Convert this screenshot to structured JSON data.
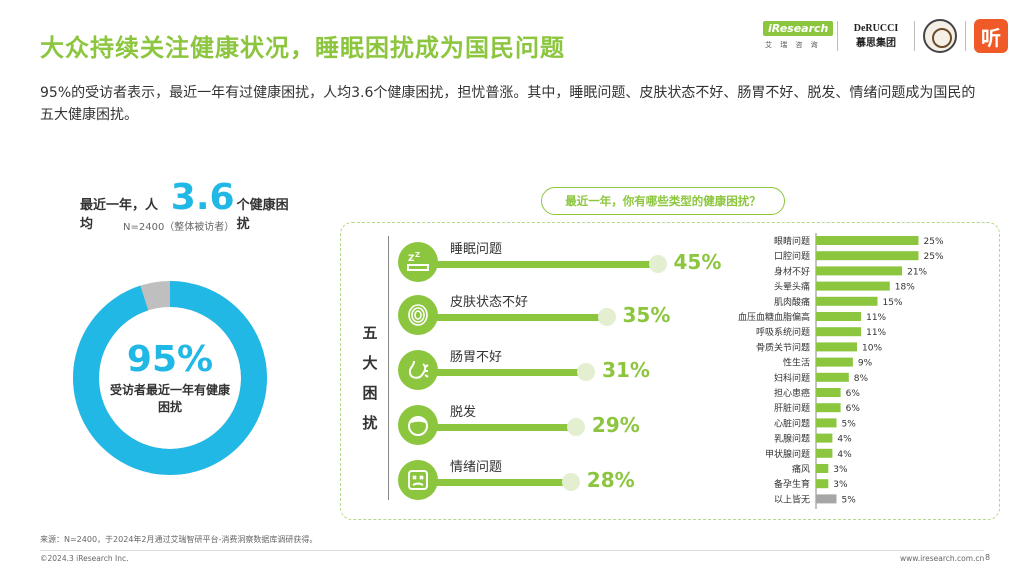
{
  "header": {
    "title": "大众持续关注健康状况，睡眠困扰成为国民问题",
    "subtitle": "95%的受访者表示，最近一年有过健康困扰，人均3.6个健康困扰，担忧普涨。其中，睡眠问题、皮肤状态不好、肠胃不好、脱发、情绪问题成为国民的五大健康困扰。"
  },
  "logos": {
    "iresearch": "iResearch",
    "iresearch_sub": "艾 瑞 咨 询",
    "derucci_en": "DeRUCCI",
    "derucci_cn": "慕思集团",
    "ting": "听"
  },
  "summary": {
    "prefix": "最近一年，人均",
    "avg_value": "3.6",
    "suffix": "个健康困扰",
    "sample_note": "N=2400（整体被访者）",
    "donut_pct_label": "95%",
    "donut_pct_value": 95,
    "donut_caption": "受访者最近一年有健康困扰",
    "colors": {
      "main": "#22b8e6",
      "rest": "#bfbfbf"
    }
  },
  "panel": {
    "title": "最近一年，你有哪些类型的健康困扰？",
    "five_label": [
      "五",
      "大",
      "困",
      "扰"
    ]
  },
  "chart_data": [
    {
      "type": "bar",
      "categories": [
        "睡眠问题",
        "皮肤状态不好",
        "肠胃不好",
        "脱发",
        "情绪问题"
      ],
      "values": [
        45,
        35,
        31,
        29,
        28
      ],
      "labels": [
        "45%",
        "35%",
        "31%",
        "29%",
        "28%"
      ],
      "icons": [
        "sleep-zzz-icon",
        "fingerprint-skin-icon",
        "stomach-icon",
        "hair-head-icon",
        "upset-face-icon"
      ],
      "color": "#8cc63f",
      "unit": "%"
    },
    {
      "type": "bar",
      "categories": [
        "眼睛问题",
        "口腔问题",
        "身材不好",
        "头晕头痛",
        "肌肉酸痛",
        "血压血糖血脂偏高",
        "呼吸系统问题",
        "骨质关节问题",
        "性生活",
        "妇科问题",
        "担心患癌",
        "肝脏问题",
        "心脏问题",
        "乳腺问题",
        "甲状腺问题",
        "痛风",
        "备孕生育",
        "以上皆无"
      ],
      "values": [
        25,
        25,
        21,
        18,
        15,
        11,
        11,
        10,
        9,
        8,
        6,
        6,
        5,
        4,
        4,
        3,
        3,
        5
      ],
      "labels": [
        "25%",
        "25%",
        "21%",
        "18%",
        "15%",
        "11%",
        "11%",
        "10%",
        "9%",
        "8%",
        "6%",
        "6%",
        "5%",
        "4%",
        "4%",
        "3%",
        "3%",
        "5%"
      ],
      "colors": {
        "bar": "#8cc63f",
        "none_bar": "#a6a6a6"
      },
      "unit": "%"
    }
  ],
  "footer": {
    "source": "来源：N=2400，于2024年2月通过艾瑞智研平台-消费洞察数据库调研获得。",
    "copyright": "©2024.3 iResearch Inc.",
    "website": "www.iresearch.com.cn",
    "page": "8"
  }
}
